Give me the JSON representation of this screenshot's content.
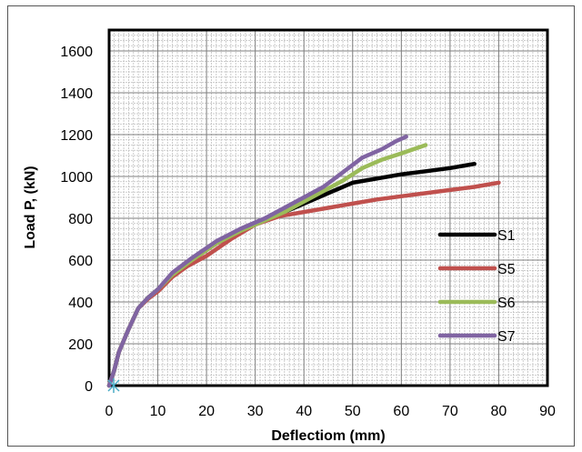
{
  "chart_data": {
    "type": "line",
    "title": "",
    "xlabel": "Deflectiom (mm)",
    "ylabel": "Load P, (kN)",
    "xlim": [
      0,
      90
    ],
    "ylim": [
      0,
      1700
    ],
    "xticks": [
      0,
      10,
      20,
      30,
      40,
      50,
      60,
      70,
      80,
      90
    ],
    "yticks": [
      0,
      200,
      400,
      600,
      800,
      1000,
      1200,
      1400,
      1600
    ],
    "x_minor_step": 1,
    "y_minor_step": 25,
    "grid": true,
    "legend_position": "right",
    "series": [
      {
        "name": "S1",
        "color": "#000000",
        "points": [
          [
            0,
            0
          ],
          [
            1,
            70
          ],
          [
            2,
            160
          ],
          [
            4,
            270
          ],
          [
            6,
            370
          ],
          [
            8,
            420
          ],
          [
            10,
            460
          ],
          [
            13,
            530
          ],
          [
            17,
            600
          ],
          [
            22,
            680
          ],
          [
            27,
            740
          ],
          [
            32,
            790
          ],
          [
            37,
            840
          ],
          [
            42,
            890
          ],
          [
            46,
            930
          ],
          [
            50,
            970
          ],
          [
            55,
            990
          ],
          [
            60,
            1010
          ],
          [
            65,
            1025
          ],
          [
            70,
            1040
          ],
          [
            75,
            1060
          ]
        ]
      },
      {
        "name": "S5",
        "color": "#c0504d",
        "points": [
          [
            0,
            0
          ],
          [
            1,
            70
          ],
          [
            2,
            160
          ],
          [
            4,
            270
          ],
          [
            6,
            370
          ],
          [
            8,
            415
          ],
          [
            10,
            450
          ],
          [
            13,
            520
          ],
          [
            16,
            570
          ],
          [
            20,
            620
          ],
          [
            25,
            700
          ],
          [
            30,
            770
          ],
          [
            35,
            810
          ],
          [
            40,
            830
          ],
          [
            45,
            850
          ],
          [
            50,
            870
          ],
          [
            55,
            890
          ],
          [
            60,
            905
          ],
          [
            65,
            920
          ],
          [
            70,
            935
          ],
          [
            75,
            950
          ],
          [
            80,
            970
          ]
        ]
      },
      {
        "name": "S6",
        "color": "#9bbb59",
        "points": [
          [
            0,
            0
          ],
          [
            1,
            70
          ],
          [
            2,
            160
          ],
          [
            4,
            270
          ],
          [
            6,
            370
          ],
          [
            8,
            420
          ],
          [
            10,
            460
          ],
          [
            13,
            530
          ],
          [
            17,
            600
          ],
          [
            22,
            680
          ],
          [
            27,
            740
          ],
          [
            32,
            790
          ],
          [
            36,
            830
          ],
          [
            40,
            880
          ],
          [
            44,
            930
          ],
          [
            48,
            980
          ],
          [
            52,
            1040
          ],
          [
            56,
            1080
          ],
          [
            60,
            1110
          ],
          [
            65,
            1150
          ]
        ]
      },
      {
        "name": "S7",
        "color": "#8064a2",
        "points": [
          [
            0,
            0
          ],
          [
            1,
            70
          ],
          [
            2,
            160
          ],
          [
            4,
            270
          ],
          [
            6,
            370
          ],
          [
            8,
            420
          ],
          [
            10,
            460
          ],
          [
            13,
            540
          ],
          [
            17,
            610
          ],
          [
            22,
            690
          ],
          [
            27,
            750
          ],
          [
            32,
            800
          ],
          [
            36,
            850
          ],
          [
            40,
            900
          ],
          [
            44,
            950
          ],
          [
            48,
            1020
          ],
          [
            52,
            1090
          ],
          [
            56,
            1130
          ],
          [
            59,
            1170
          ],
          [
            61,
            1190
          ]
        ]
      }
    ]
  }
}
